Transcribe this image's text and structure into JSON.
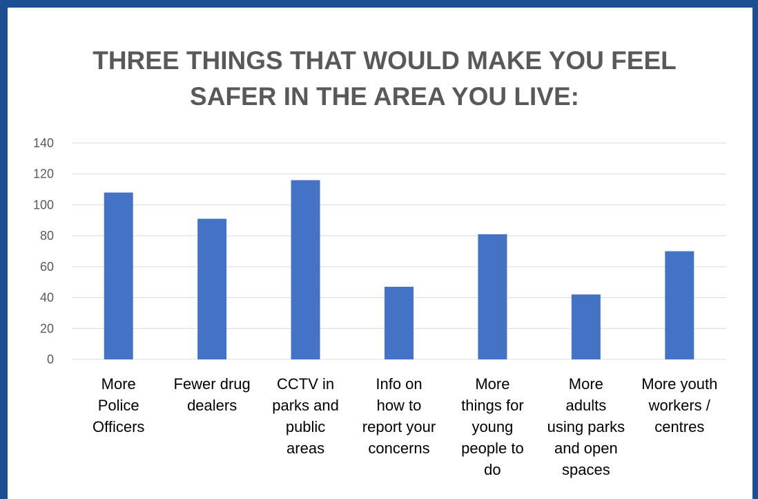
{
  "chart_data": {
    "type": "bar",
    "title": "THREE THINGS  THAT WOULD MAKE YOU FEEL SAFER IN THE AREA YOU LIVE:",
    "title_lines": [
      "THREE THINGS  THAT WOULD MAKE YOU FEEL",
      "SAFER IN THE AREA YOU LIVE:"
    ],
    "categories": [
      "More Police Officers",
      "Fewer drug dealers",
      "CCTV in parks and public areas",
      "Info on how to report your concerns",
      "More things for young people to do",
      "More adults using parks and open spaces",
      "More youth workers / centres"
    ],
    "category_lines": [
      [
        "More",
        "Police",
        "Officers"
      ],
      [
        "Fewer drug",
        "dealers"
      ],
      [
        "CCTV in",
        "parks and",
        "public",
        "areas"
      ],
      [
        "Info on",
        "how to",
        "report your",
        "concerns"
      ],
      [
        "More",
        "things for",
        "young",
        "people to",
        "do"
      ],
      [
        "More",
        "adults",
        "using parks",
        "and open",
        "spaces"
      ],
      [
        "More youth",
        "workers /",
        "centres"
      ]
    ],
    "values": [
      108,
      91,
      116,
      47,
      81,
      42,
      70
    ],
    "ylim": [
      0,
      140
    ],
    "yticks": [
      0,
      20,
      40,
      60,
      80,
      100,
      120,
      140
    ],
    "xlabel": "",
    "ylabel": "",
    "grid": true,
    "legend": "none",
    "bar_color": "#4472c4",
    "grid_color": "#d9d9d9",
    "frame_color": "#1b4f91"
  }
}
